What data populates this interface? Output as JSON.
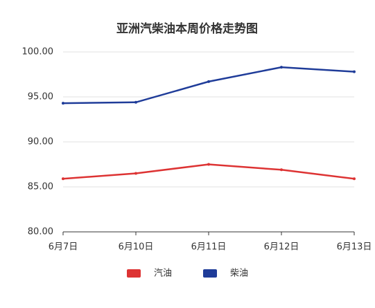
{
  "chart_data": {
    "type": "line",
    "title": "亚洲汽柴油本周价格走势图",
    "categories": [
      "6月7日",
      "6月10日",
      "6月11日",
      "6月12日",
      "6月13日"
    ],
    "series": [
      {
        "name": "汽油",
        "color": "#dd3333",
        "values": [
          85.9,
          86.5,
          87.5,
          86.9,
          85.9
        ]
      },
      {
        "name": "柴油",
        "color": "#1f3c99",
        "values": [
          94.3,
          94.4,
          96.7,
          98.3,
          97.8
        ]
      }
    ],
    "ylim": [
      80,
      100
    ],
    "yticks": [
      {
        "value": 80,
        "label": "80.00"
      },
      {
        "value": 85,
        "label": "85.00"
      },
      {
        "value": 90,
        "label": "90.00"
      },
      {
        "value": 95,
        "label": "95.00"
      },
      {
        "value": 100,
        "label": "100.00"
      }
    ],
    "grid": true,
    "legend": "bottom"
  }
}
